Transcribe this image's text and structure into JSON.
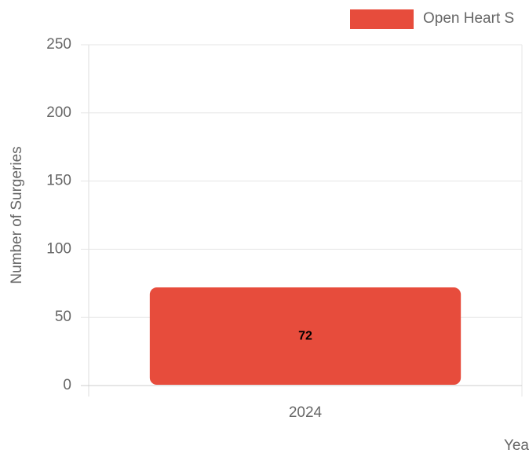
{
  "chart_data": {
    "type": "bar",
    "legend_label": "Open Heart S",
    "x_label": "Yea",
    "y_label": "Number of Surgeries",
    "categories": [
      "2024"
    ],
    "series": [
      {
        "name": "Open Heart S",
        "color": "#e74c3c",
        "values": [
          72
        ]
      }
    ],
    "ylim": [
      0,
      250
    ],
    "yticks": [
      0,
      50,
      100,
      150,
      200,
      250
    ],
    "grid": true
  }
}
